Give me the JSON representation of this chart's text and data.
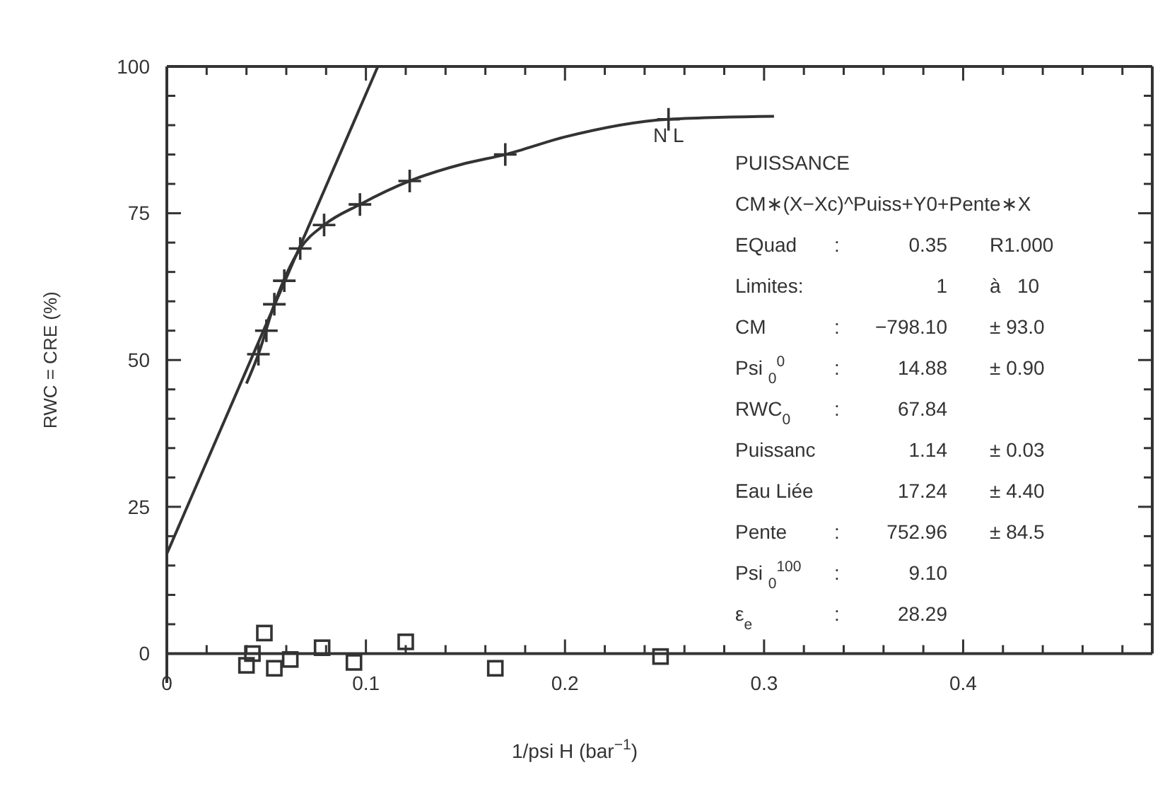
{
  "chart_data": {
    "type": "scatter",
    "xlabel": "1/psi H (bar$^{−1}$)",
    "ylabel": "RWC = CRE (%)",
    "xlim": [
      0,
      0.495
    ],
    "ylim": [
      -5,
      100
    ],
    "xticks": [
      0,
      {
        "value": 0.02,
        "label": null
      },
      {
        "value": 0.04,
        "label": null
      },
      {
        "value": 0.06,
        "label": null
      },
      {
        "value": 0.08,
        "label": null
      },
      {
        "value": 0.1,
        "label": "0.1"
      },
      {
        "value": 0.12,
        "label": null
      },
      {
        "value": 0.14,
        "label": null
      },
      {
        "value": 0.16,
        "label": null
      },
      {
        "value": 0.18,
        "label": null
      },
      {
        "value": 0.2,
        "label": "0.2"
      },
      {
        "value": 0.22,
        "label": null
      },
      {
        "value": 0.24,
        "label": null
      },
      {
        "value": 0.26,
        "label": null
      },
      {
        "value": 0.28,
        "label": null
      },
      {
        "value": 0.3,
        "label": "0.3"
      },
      {
        "value": 0.32,
        "label": null
      },
      {
        "value": 0.34,
        "label": null
      },
      {
        "value": 0.36,
        "label": null
      },
      {
        "value": 0.38,
        "label": null
      },
      {
        "value": 0.4,
        "label": "0.4"
      },
      {
        "value": 0.42,
        "label": null
      },
      {
        "value": 0.44,
        "label": null
      },
      {
        "value": 0.46,
        "label": null
      },
      {
        "value": 0.48,
        "label": null
      }
    ],
    "yticks": [
      0,
      {
        "value": 5,
        "label": null
      },
      {
        "value": 10,
        "label": null
      },
      {
        "value": 15,
        "label": null
      },
      {
        "value": 20,
        "label": null
      },
      25,
      {
        "value": 30,
        "label": null
      },
      {
        "value": 35,
        "label": null
      },
      {
        "value": 40,
        "label": null
      },
      {
        "value": 45,
        "label": null
      },
      50,
      {
        "value": 55,
        "label": null
      },
      {
        "value": 60,
        "label": null
      },
      {
        "value": 65,
        "label": null
      },
      {
        "value": 70,
        "label": null
      },
      75,
      {
        "value": 80,
        "label": null
      },
      {
        "value": 85,
        "label": null
      },
      {
        "value": 90,
        "label": null
      },
      {
        "value": 95,
        "label": null
      },
      100
    ],
    "series": [
      {
        "marker": "cross",
        "color": "#333333",
        "x": [
          0.046,
          0.05,
          0.054,
          0.059,
          0.067,
          0.079,
          0.097,
          0.122,
          0.17,
          0.252
        ],
        "values": [
          51,
          55,
          59.5,
          63.5,
          69,
          73,
          76.5,
          80.5,
          85,
          91
        ]
      },
      {
        "type": "line",
        "line_style": "solid",
        "color": "#333333",
        "x": [
          0.04,
          0.046,
          0.054,
          0.067,
          0.079,
          0.097,
          0.122,
          0.15,
          0.17,
          0.2,
          0.252,
          0.305
        ],
        "values": [
          46,
          51,
          59.5,
          69,
          73,
          76.5,
          80.5,
          83.5,
          85,
          88,
          91,
          91.5
        ]
      },
      {
        "type": "line",
        "line_style": "solid",
        "color": "#333333",
        "x": [
          0,
          0.106
        ],
        "values": [
          17,
          100
        ]
      },
      {
        "marker": "square",
        "color": "#333333",
        "x": [
          0.04,
          0.043,
          0.049,
          0.054,
          0.062,
          0.078,
          0.094,
          0.12,
          0.165,
          0.248
        ],
        "values": [
          -2,
          0,
          3.5,
          -2.5,
          -1,
          1,
          -1.5,
          2,
          -2.5,
          -0.5
        ]
      }
    ],
    "annotations": [
      {
        "text": "N L",
        "x": 0.252,
        "y": 91
      },
      "PUISSANCE",
      "CM∗(X−Xc)^Puiss+Y0+Pente∗X",
      "EQuad\t:\t0.35\tR1.000",
      "Limites:\t\t1\tà   10",
      "CM\t:\t−798.10\t± 93.0",
      "Psi $_{0}$$^{0}$\t:\t14.88\t± 0.90",
      "RWC$_{0}$\t:\t67.84\t",
      "Puissanc\t\t1.14\t± 0.03",
      "Eau Liée\t\t17.24\t± 4.40",
      "Pente\t:\t752.96\t± 84.5",
      "Psi $_{0}$$^{100}$\t:\t9.10\t",
      "ε$_{e}$\t:\t28.29\t"
    ]
  }
}
